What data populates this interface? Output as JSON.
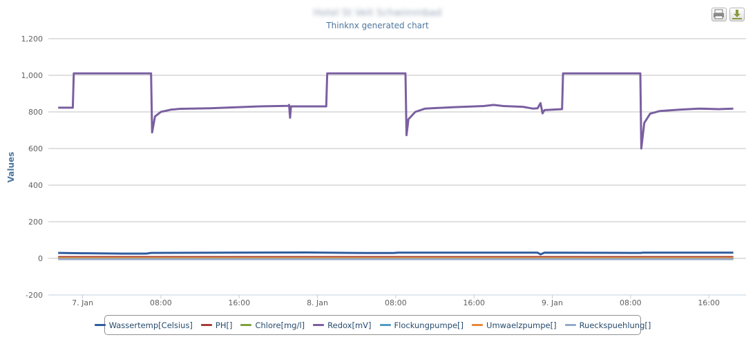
{
  "chart_data": {
    "type": "line",
    "title": "Hotel St Veit Schwimmbad",
    "subtitle": "Thinknx generated chart",
    "ylabel": "Values",
    "ylim": [
      -200,
      1200
    ],
    "yticks": [
      -200,
      0,
      200,
      400,
      600,
      800,
      1000,
      1200
    ],
    "ytick_labels": [
      "-200",
      "0",
      "200",
      "400",
      "600",
      "800",
      "1,000",
      "1,200"
    ],
    "xlim": [
      -3.5,
      67.8
    ],
    "xticks": [
      0,
      8,
      16,
      24,
      32,
      40,
      48,
      56,
      64
    ],
    "xtick_labels": [
      "7. Jan",
      "08:00",
      "16:00",
      "8. Jan",
      "08:00",
      "16:00",
      "9. Jan",
      "08:00",
      "16:00"
    ],
    "grid": true,
    "legend_position": "bottom",
    "series": [
      {
        "name": "Wassertemp[Celsius]",
        "color": "#2f5c9e",
        "points": [
          [
            -2.5,
            30
          ],
          [
            0,
            28
          ],
          [
            4,
            26
          ],
          [
            6.5,
            26
          ],
          [
            7,
            30
          ],
          [
            15,
            31
          ],
          [
            23,
            32
          ],
          [
            29,
            29
          ],
          [
            31.8,
            29
          ],
          [
            32.2,
            31
          ],
          [
            38,
            31
          ],
          [
            45,
            31
          ],
          [
            46.5,
            31
          ],
          [
            46.8,
            22
          ],
          [
            47.2,
            31
          ],
          [
            56,
            30
          ],
          [
            57,
            30
          ],
          [
            57.3,
            31
          ],
          [
            66.5,
            31
          ]
        ]
      },
      {
        "name": "PH[]",
        "color": "#a83a3a",
        "points": [
          [
            -2.5,
            7
          ],
          [
            66.5,
            7
          ]
        ]
      },
      {
        "name": "Chlore[mg/l]",
        "color": "#7fa13c",
        "points": [
          [
            -2.5,
            2
          ],
          [
            66.5,
            2
          ]
        ]
      },
      {
        "name": "Redox[mV]",
        "color": "#7a5fa0",
        "points": [
          [
            -2.5,
            823
          ],
          [
            -1,
            823
          ],
          [
            -0.9,
            1010
          ],
          [
            7,
            1010
          ],
          [
            7.1,
            688
          ],
          [
            7.4,
            775
          ],
          [
            8,
            800
          ],
          [
            9,
            812
          ],
          [
            10,
            817
          ],
          [
            13,
            820
          ],
          [
            16,
            826
          ],
          [
            18,
            830
          ],
          [
            20,
            832
          ],
          [
            21,
            833
          ],
          [
            21.1,
            838
          ],
          [
            21.2,
            768
          ],
          [
            21.3,
            830
          ],
          [
            22,
            830
          ],
          [
            24,
            830
          ],
          [
            24.9,
            830
          ],
          [
            25,
            1010
          ],
          [
            33,
            1010
          ],
          [
            33.1,
            673
          ],
          [
            33.3,
            760
          ],
          [
            34,
            800
          ],
          [
            35,
            818
          ],
          [
            38,
            826
          ],
          [
            41,
            832
          ],
          [
            42,
            838
          ],
          [
            43,
            832
          ],
          [
            45,
            828
          ],
          [
            46,
            818
          ],
          [
            46.5,
            820
          ],
          [
            46.8,
            848
          ],
          [
            47,
            792
          ],
          [
            47.2,
            810
          ],
          [
            49,
            815
          ],
          [
            49.1,
            1010
          ],
          [
            57,
            1010
          ],
          [
            57.1,
            600
          ],
          [
            57.4,
            740
          ],
          [
            58,
            790
          ],
          [
            59,
            805
          ],
          [
            61,
            812
          ],
          [
            63,
            818
          ],
          [
            65,
            815
          ],
          [
            66.5,
            818
          ]
        ]
      },
      {
        "name": "Flockungpumpe[]",
        "color": "#4f9ac6",
        "points": [
          [
            -2.5,
            0
          ],
          [
            66.5,
            0
          ]
        ]
      },
      {
        "name": "Umwaelzpumpe[]",
        "color": "#e8883a",
        "points": [
          [
            -2.5,
            1
          ],
          [
            66.5,
            1
          ]
        ]
      },
      {
        "name": "Rueckspuehlung[]",
        "color": "#93aac8",
        "points": [
          [
            -2.5,
            -4
          ],
          [
            66.5,
            -4
          ]
        ]
      }
    ]
  }
}
